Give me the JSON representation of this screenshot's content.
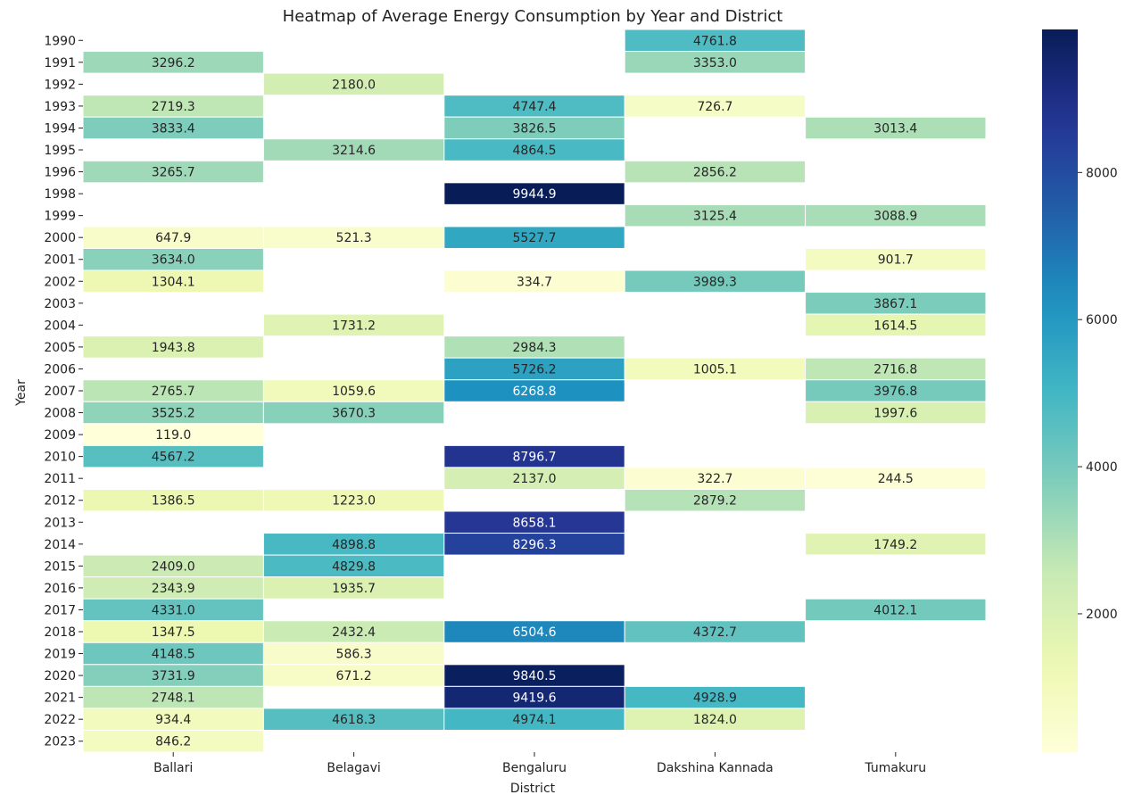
{
  "chart_data": {
    "type": "heatmap",
    "title": "Heatmap of Average Energy Consumption by Year and District",
    "xlabel": "District",
    "ylabel": "Year",
    "colormap": "YlGnBu",
    "x_categories": [
      "Ballari",
      "Belagavi",
      "Bengaluru",
      "Dakshina Kannada",
      "Tumakuru"
    ],
    "y_categories": [
      "1990",
      "1991",
      "1992",
      "1993",
      "1994",
      "1995",
      "1996",
      "1998",
      "1999",
      "2000",
      "2001",
      "2002",
      "2003",
      "2004",
      "2005",
      "2006",
      "2007",
      "2008",
      "2009",
      "2010",
      "2011",
      "2012",
      "2013",
      "2014",
      "2015",
      "2016",
      "2017",
      "2018",
      "2019",
      "2020",
      "2021",
      "2022",
      "2023"
    ],
    "values": [
      [
        null,
        null,
        null,
        4761.8,
        null
      ],
      [
        3296.2,
        null,
        null,
        3353.0,
        null
      ],
      [
        null,
        2180.0,
        null,
        null,
        null
      ],
      [
        2719.3,
        null,
        4747.4,
        726.7,
        null
      ],
      [
        3833.4,
        null,
        3826.5,
        null,
        3013.4
      ],
      [
        null,
        3214.6,
        4864.5,
        null,
        null
      ],
      [
        3265.7,
        null,
        null,
        2856.2,
        null
      ],
      [
        null,
        null,
        9944.9,
        null,
        null
      ],
      [
        null,
        null,
        null,
        3125.4,
        3088.9
      ],
      [
        647.9,
        521.3,
        5527.7,
        null,
        null
      ],
      [
        3634.0,
        null,
        null,
        null,
        901.7
      ],
      [
        1304.1,
        null,
        334.7,
        3989.3,
        null
      ],
      [
        null,
        null,
        null,
        null,
        3867.1
      ],
      [
        null,
        1731.2,
        null,
        null,
        1614.5
      ],
      [
        1943.8,
        null,
        2984.3,
        null,
        null
      ],
      [
        null,
        null,
        5726.2,
        1005.1,
        2716.8
      ],
      [
        2765.7,
        1059.6,
        6268.8,
        null,
        3976.8
      ],
      [
        3525.2,
        3670.3,
        null,
        null,
        1997.6
      ],
      [
        119.0,
        null,
        null,
        null,
        null
      ],
      [
        4567.2,
        null,
        8796.7,
        null,
        null
      ],
      [
        null,
        null,
        2137.0,
        322.7,
        244.5
      ],
      [
        1386.5,
        1223.0,
        null,
        2879.2,
        null
      ],
      [
        null,
        null,
        8658.1,
        null,
        null
      ],
      [
        null,
        4898.8,
        8296.3,
        null,
        1749.2
      ],
      [
        2409.0,
        4829.8,
        null,
        null,
        null
      ],
      [
        2343.9,
        1935.7,
        null,
        null,
        null
      ],
      [
        4331.0,
        null,
        null,
        null,
        4012.1
      ],
      [
        1347.5,
        2432.4,
        6504.6,
        4372.7,
        null
      ],
      [
        4148.5,
        586.3,
        null,
        null,
        null
      ],
      [
        3731.9,
        671.2,
        9840.5,
        null,
        null
      ],
      [
        2748.1,
        null,
        9419.6,
        4928.9,
        null
      ],
      [
        934.4,
        4618.3,
        4974.1,
        1824.0,
        null
      ],
      [
        846.2,
        null,
        null,
        null,
        null
      ]
    ],
    "value_format": "1 decimal",
    "color_range": [
      119.0,
      9944.9
    ],
    "colorbar_ticks": [
      "2000",
      "4000",
      "6000",
      "8000"
    ],
    "colorbar_tick_values": [
      2000,
      4000,
      6000,
      8000
    ],
    "missing_cells": "blank (white)",
    "cell_borders": "white"
  }
}
